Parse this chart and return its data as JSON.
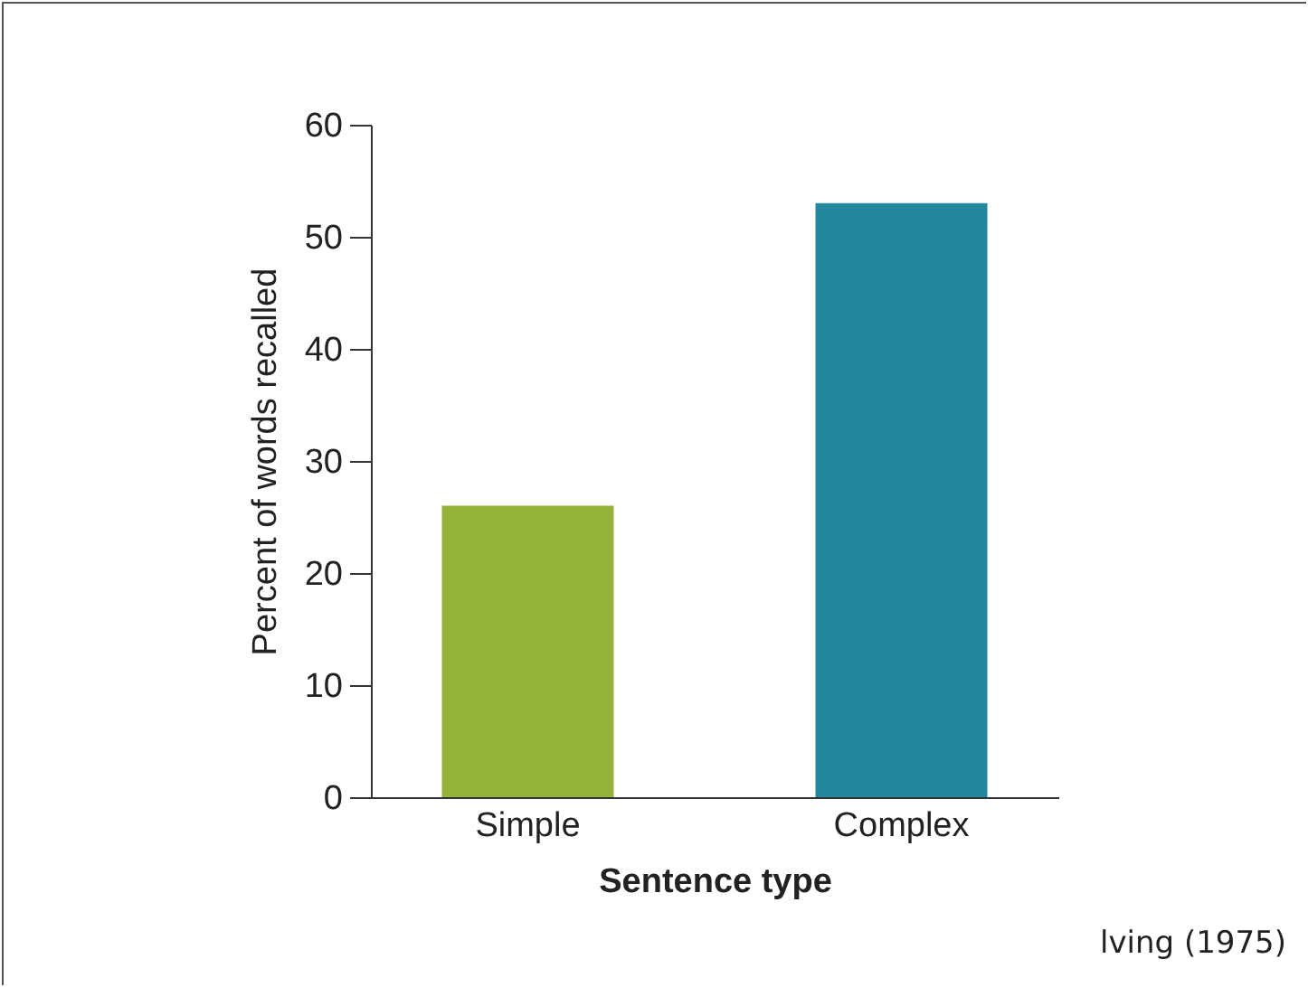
{
  "chart_data": {
    "type": "bar",
    "xlabel": "Sentence type",
    "ylabel": "Percent of words recalled",
    "categories": [
      "Simple",
      "Complex"
    ],
    "values": [
      26,
      53
    ],
    "colors": [
      "#95b33a",
      "#23879e"
    ],
    "ylim": [
      0,
      60
    ],
    "yticks": [
      0,
      10,
      20,
      30,
      40,
      50,
      60
    ],
    "grid": false,
    "annotations": [
      "lving (1975)"
    ]
  }
}
